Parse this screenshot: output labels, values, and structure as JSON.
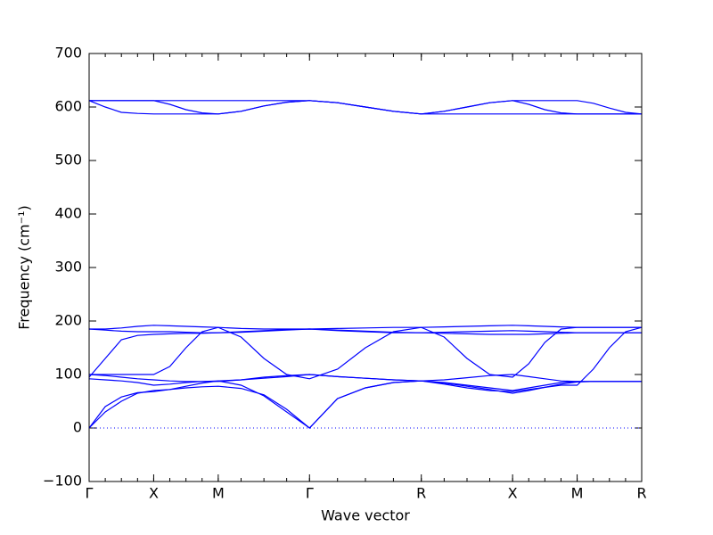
{
  "chart_data": {
    "type": "line",
    "xlabel": "Wave vector",
    "ylabel": "Frequency (cm⁻¹)",
    "x": [
      0,
      0.125,
      0.25,
      0.375,
      0.5,
      0.625,
      0.75,
      0.875,
      1.0,
      1.177,
      1.354,
      1.53,
      1.707,
      1.924,
      2.14,
      2.357,
      2.573,
      2.75,
      2.927,
      3.103,
      3.28,
      3.405,
      3.53,
      3.655,
      3.78,
      3.905,
      4.03,
      4.155,
      4.28
    ],
    "xlim": [
      0,
      4.28
    ],
    "xticks": [
      {
        "value": 0,
        "label": "Γ"
      },
      {
        "value": 0.5,
        "label": "X"
      },
      {
        "value": 1.0,
        "label": "M"
      },
      {
        "value": 1.707,
        "label": "Γ"
      },
      {
        "value": 2.573,
        "label": "R"
      },
      {
        "value": 3.28,
        "label": "X"
      },
      {
        "value": 3.78,
        "label": "M"
      },
      {
        "value": 4.28,
        "label": "R"
      }
    ],
    "ylim": [
      -100,
      700
    ],
    "yticks": [
      {
        "value": -100,
        "label": "−100"
      },
      0,
      100,
      200,
      300,
      400,
      500,
      600,
      700
    ],
    "zero_line": true,
    "series": [
      {
        "color": "#0000ff",
        "values": [
          612,
          612,
          612,
          612,
          612,
          612,
          612,
          612,
          612,
          612,
          612,
          612,
          612,
          608,
          600,
          592,
          587,
          592,
          600,
          608,
          612,
          612,
          612,
          612,
          612,
          607,
          598,
          590,
          587
        ]
      },
      {
        "color": "#0000ff",
        "values": [
          612,
          600,
          590,
          588,
          587,
          587,
          587,
          587,
          587,
          592,
          602,
          609,
          612,
          608,
          600,
          592,
          587,
          587,
          587,
          587,
          587,
          587,
          587,
          587,
          587,
          587,
          587,
          587,
          587
        ]
      },
      {
        "color": "#0000ff",
        "values": [
          612,
          612,
          612,
          612,
          612,
          605,
          595,
          589,
          587,
          592,
          602,
          609,
          612,
          608,
          600,
          592,
          587,
          592,
          600,
          608,
          612,
          605,
          595,
          589,
          587,
          587,
          587,
          587,
          587
        ]
      },
      {
        "color": "#0000ff",
        "values": [
          185,
          185,
          187,
          190,
          192,
          191,
          190,
          189,
          188,
          186,
          185,
          185,
          185,
          186,
          187,
          188,
          188,
          189,
          190,
          191,
          192,
          191,
          190,
          189,
          188,
          188,
          188,
          188,
          188
        ]
      },
      {
        "color": "#0000ff",
        "values": [
          185,
          183,
          181,
          180,
          180,
          180,
          179,
          178,
          178,
          180,
          182,
          184,
          185,
          182,
          180,
          178,
          178,
          179,
          180,
          181,
          182,
          181,
          180,
          179,
          178,
          178,
          178,
          178,
          178
        ]
      },
      {
        "color": "#0000ff",
        "values": [
          95,
          130,
          165,
          173,
          175,
          176,
          177,
          177,
          178,
          179,
          181,
          183,
          185,
          183,
          181,
          179,
          178,
          177,
          176,
          175,
          175,
          175,
          176,
          177,
          178,
          178,
          178,
          178,
          178
        ]
      },
      {
        "color": "#0000ff",
        "values": [
          100,
          100,
          100,
          100,
          100,
          115,
          150,
          180,
          188,
          170,
          130,
          100,
          92,
          110,
          150,
          180,
          188,
          170,
          130,
          100,
          95,
          120,
          160,
          185,
          188,
          188,
          188,
          188,
          188
        ]
      },
      {
        "color": "#0000ff",
        "values": [
          100,
          98,
          95,
          92,
          90,
          88,
          87,
          87,
          87,
          90,
          95,
          98,
          100,
          96,
          93,
          90,
          88,
          90,
          94,
          98,
          100,
          96,
          92,
          88,
          87,
          87,
          87,
          87,
          87
        ]
      },
      {
        "color": "#0000ff",
        "values": [
          92,
          90,
          88,
          85,
          80,
          82,
          85,
          87,
          88,
          90,
          93,
          96,
          100,
          96,
          93,
          90,
          88,
          85,
          80,
          75,
          70,
          75,
          80,
          85,
          87,
          87,
          87,
          87,
          87
        ]
      },
      {
        "color": "#0000ff",
        "values": [
          0,
          40,
          58,
          66,
          68,
          72,
          78,
          84,
          88,
          80,
          60,
          30,
          0,
          55,
          75,
          85,
          88,
          82,
          75,
          70,
          68,
          72,
          76,
          80,
          80,
          110,
          150,
          180,
          188
        ]
      },
      {
        "color": "#0000ff",
        "values": [
          0,
          30,
          50,
          65,
          70,
          72,
          75,
          77,
          78,
          74,
          62,
          35,
          0,
          55,
          75,
          85,
          88,
          84,
          78,
          72,
          65,
          70,
          76,
          82,
          86,
          87,
          87,
          87,
          87
        ]
      }
    ]
  }
}
